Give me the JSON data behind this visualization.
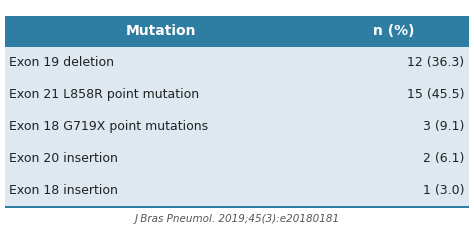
{
  "header": [
    "Mutation",
    "n (%)"
  ],
  "rows": [
    [
      "Exon 19 deletion",
      "12 (36.3)"
    ],
    [
      "Exon 21 L858R point mutation",
      "15 (45.5)"
    ],
    [
      "Exon 18 G719X point mutations",
      "3 (9.1)"
    ],
    [
      "Exon 20 insertion",
      "2 (6.1)"
    ],
    [
      "Exon 18 insertion",
      "1 (3.0)"
    ]
  ],
  "header_bg": "#2e7da3",
  "header_text_color": "#ffffff",
  "row_bg": "#dde8f0",
  "row_text_color": "#222222",
  "bottom_line_color": "#2e7da3",
  "citation": "J Bras Pneumol. 2019;45(3):e20180181",
  "citation_color": "#555555",
  "fig_bg": "#ffffff"
}
